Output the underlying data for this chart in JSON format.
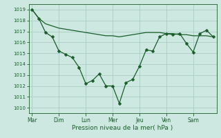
{
  "title": "",
  "xlabel": "Pression niveau de la mer( hPa )",
  "background_color": "#cce8e0",
  "grid_color": "#aaccc4",
  "line_color": "#1a5c2a",
  "ylim": [
    1009.5,
    1019.5
  ],
  "yticks": [
    1010,
    1011,
    1012,
    1013,
    1014,
    1015,
    1016,
    1017,
    1018,
    1019
  ],
  "day_labels": [
    "Mar",
    "Dim",
    "Lun",
    "Mer",
    "Jeu",
    "Ven",
    "Sam"
  ],
  "day_positions": [
    0,
    4,
    8,
    12,
    16,
    20,
    24
  ],
  "xlim": [
    -0.5,
    27.5
  ],
  "series1_x": [
    0,
    1,
    2,
    3,
    4,
    5,
    6,
    7,
    8,
    9,
    10,
    11,
    12,
    13,
    14,
    15,
    16,
    17,
    18,
    19,
    20,
    21,
    22,
    23,
    24,
    25,
    26,
    27
  ],
  "series1_y": [
    1019.0,
    1018.2,
    1017.7,
    1017.5,
    1017.3,
    1017.2,
    1017.1,
    1017.0,
    1016.9,
    1016.8,
    1016.7,
    1016.6,
    1016.6,
    1016.5,
    1016.6,
    1016.7,
    1016.8,
    1016.9,
    1016.9,
    1016.9,
    1016.8,
    1016.8,
    1016.7,
    1016.7,
    1016.6,
    1016.6,
    1016.6,
    1016.5
  ],
  "series2_x": [
    0,
    1,
    2,
    3,
    4,
    5,
    6,
    7,
    8,
    9,
    10,
    11,
    12,
    13,
    14,
    15,
    16,
    17,
    18,
    19,
    20,
    21,
    22,
    23,
    24,
    25,
    26,
    27
  ],
  "series2_y": [
    1019.0,
    1018.2,
    1016.9,
    1016.5,
    1015.2,
    1014.9,
    1014.6,
    1013.7,
    1012.2,
    1012.5,
    1013.1,
    1012.0,
    1012.0,
    1010.4,
    1012.3,
    1012.6,
    1013.8,
    1015.3,
    1015.2,
    1016.5,
    1016.8,
    1016.7,
    1016.8,
    1015.9,
    1015.1,
    1016.8,
    1017.1,
    1016.5
  ],
  "ytick_fontsize": 5.0,
  "xtick_fontsize": 5.5,
  "xlabel_fontsize": 6.5,
  "marker_size": 2.5,
  "linewidth": 0.9
}
